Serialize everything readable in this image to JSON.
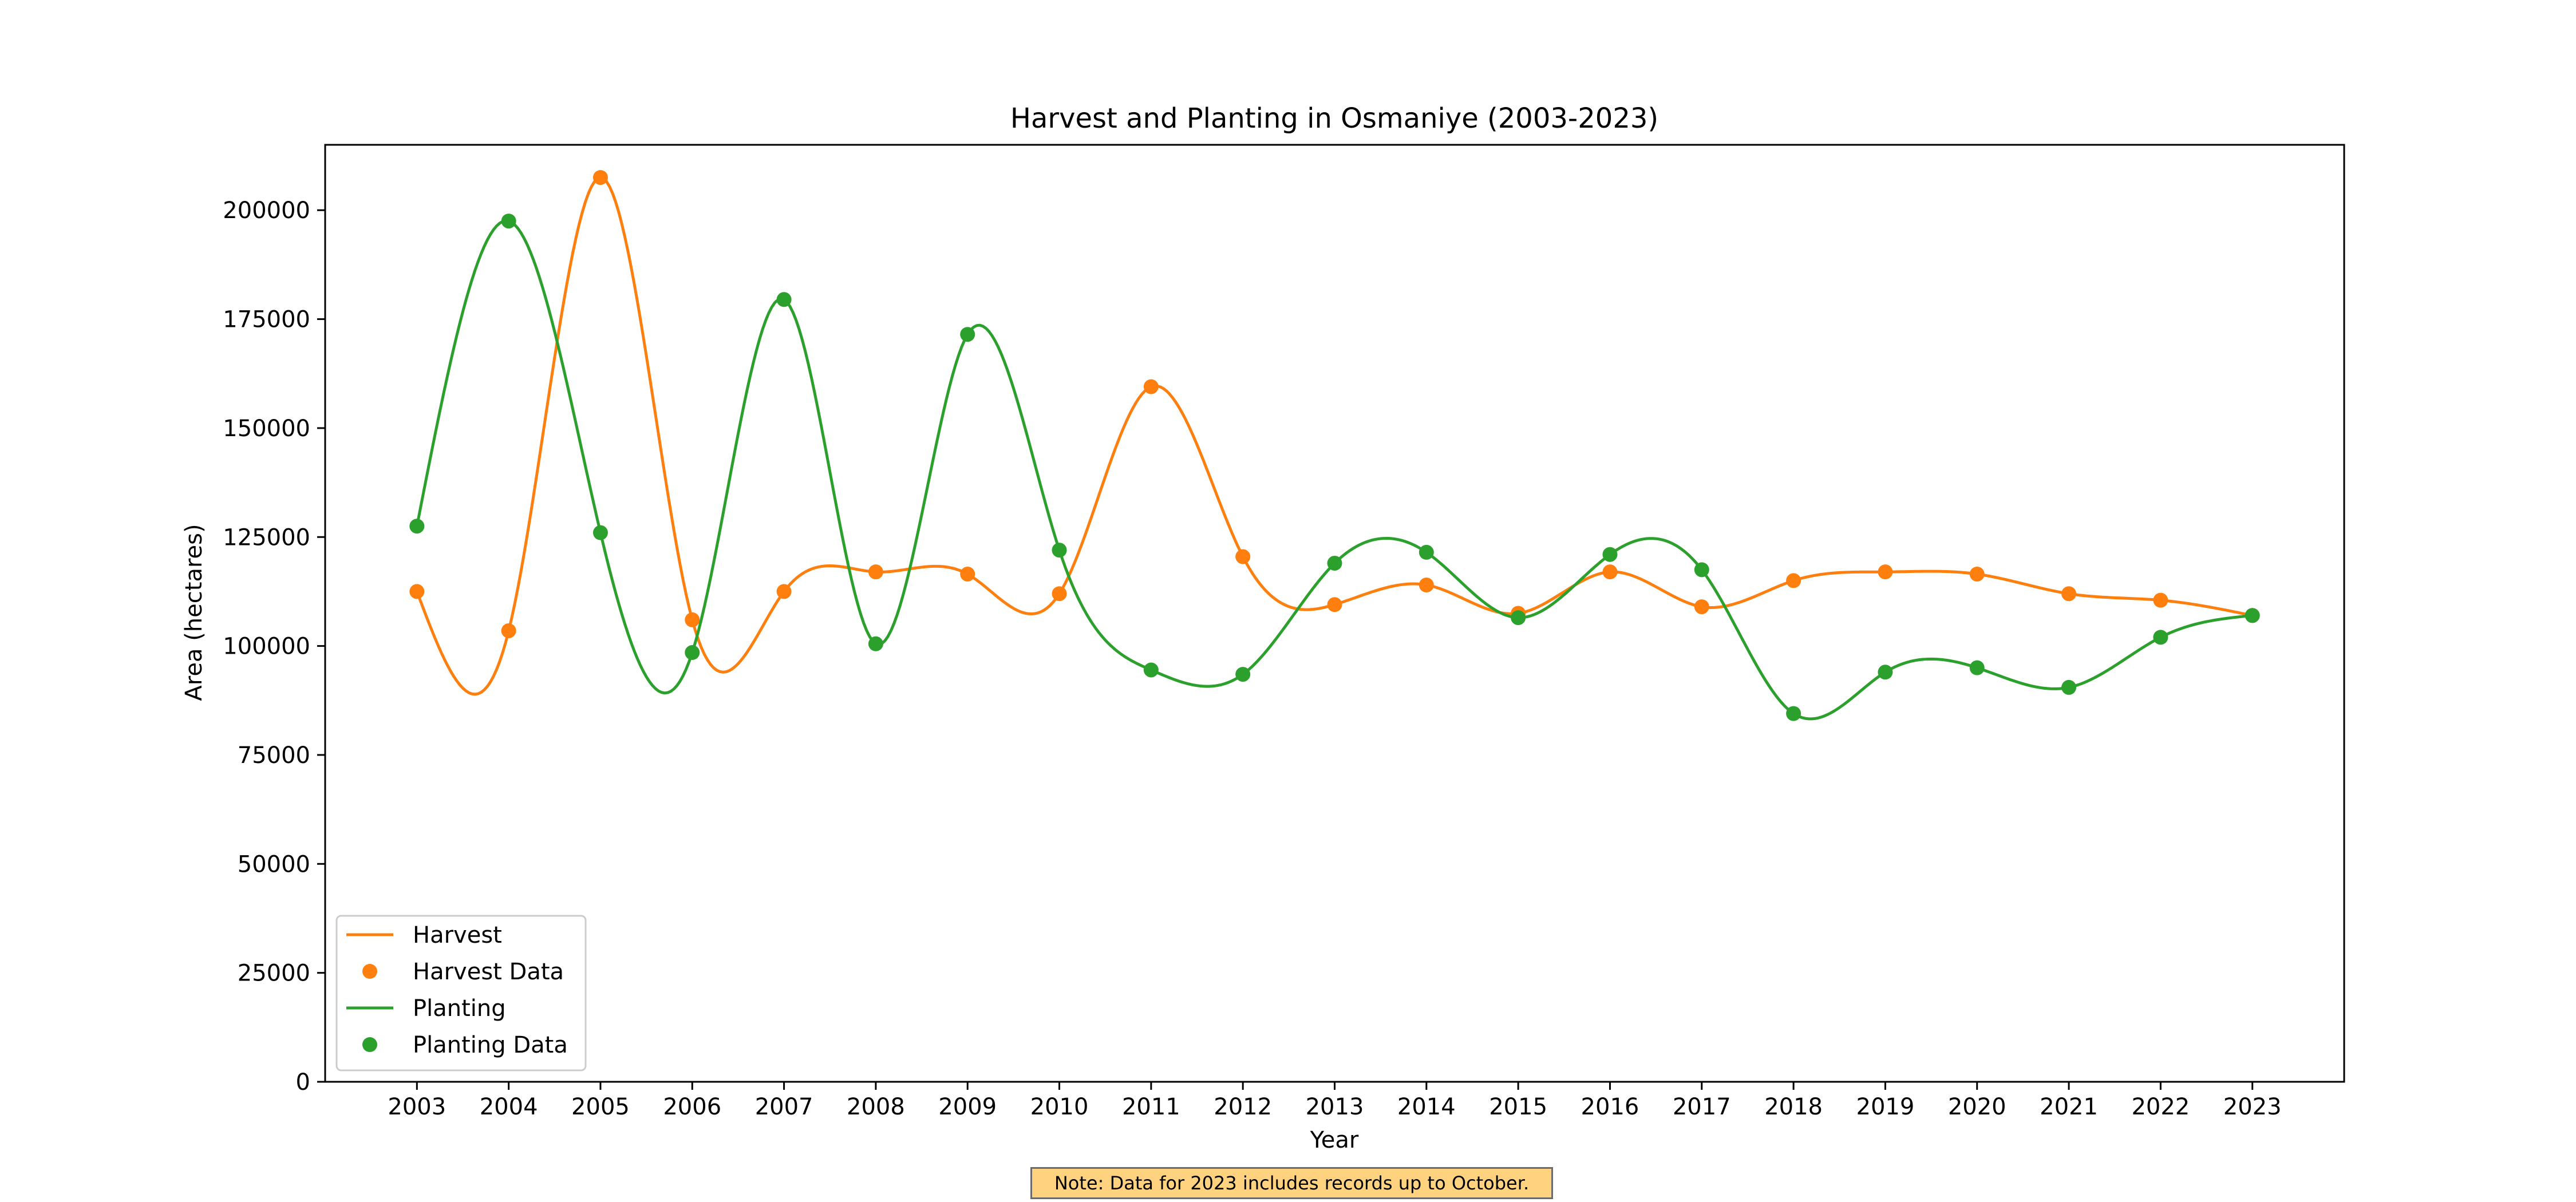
{
  "chart_data": {
    "type": "line",
    "title": "Harvest and Planting in Osmaniye (2003-2023)",
    "xlabel": "Year",
    "ylabel": "Area (hectares)",
    "x": [
      2003,
      2004,
      2005,
      2006,
      2007,
      2008,
      2009,
      2010,
      2011,
      2012,
      2013,
      2014,
      2015,
      2016,
      2017,
      2018,
      2019,
      2020,
      2021,
      2022,
      2023
    ],
    "xlim": [
      2002,
      2024
    ],
    "ylim": [
      0,
      215000
    ],
    "yticks": [
      0,
      25000,
      50000,
      75000,
      100000,
      125000,
      150000,
      175000,
      200000
    ],
    "grid": false,
    "legend_position": "lower-left",
    "series": [
      {
        "name": "Harvest",
        "marker_name": "Harvest Data",
        "color": "#ff7f0e",
        "values": [
          112500,
          103500,
          207500,
          106000,
          112500,
          117000,
          116500,
          112000,
          159500,
          120500,
          109500,
          114000,
          107500,
          117000,
          109000,
          115000,
          117000,
          116500,
          112000,
          110500,
          107000
        ]
      },
      {
        "name": "Planting",
        "marker_name": "Planting Data",
        "color": "#2ca02c",
        "values": [
          127500,
          197500,
          126000,
          98500,
          179500,
          100500,
          171500,
          122000,
          94500,
          93500,
          119000,
          121500,
          106500,
          121000,
          117500,
          84500,
          94000,
          95000,
          90500,
          102000,
          107000
        ]
      }
    ],
    "note": "Note: Data for 2023 includes records up to October."
  }
}
